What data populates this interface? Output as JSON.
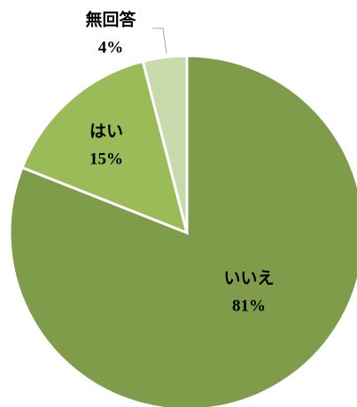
{
  "chart_data": {
    "type": "pie",
    "categories": [
      "いいえ",
      "はい",
      "無回答"
    ],
    "values": [
      81,
      15,
      4
    ],
    "value_labels": [
      "81%",
      "15%",
      "4%"
    ],
    "colors": [
      "#7f9c4b",
      "#9bbb59",
      "#c8d9ab"
    ],
    "start_angle": 0,
    "direction": "clockwise"
  }
}
